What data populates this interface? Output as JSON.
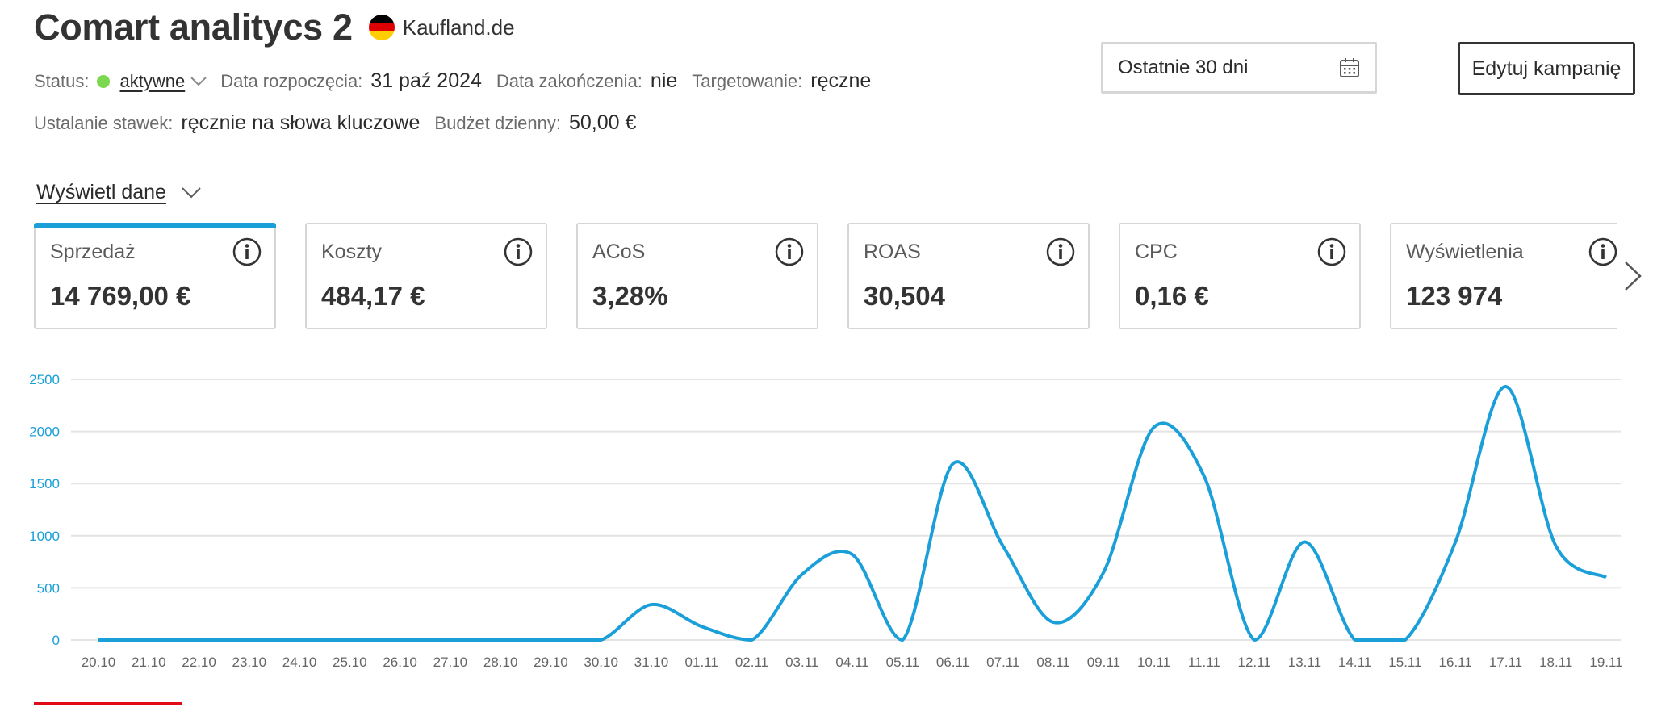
{
  "header": {
    "title": "Comart analitycs 2",
    "marketplace": "Kaufland.de"
  },
  "meta": {
    "status_label": "Status:",
    "status_value": "aktywne",
    "start_label": "Data rozpoczęcia:",
    "start_value": "31 paź 2024",
    "end_label": "Data zakończenia:",
    "end_value": "nie",
    "targeting_label": "Targetowanie:",
    "targeting_value": "ręczne",
    "bidding_label": "Ustalanie stawek:",
    "bidding_value": "ręcznie na słowa kluczowe",
    "budget_label": "Budżet dzienny:",
    "budget_value": "50,00 €"
  },
  "date_range": "Ostatnie 30 dni",
  "edit_button_label": "Edytuj kampanię",
  "show_data_label": "Wyświetl dane",
  "kpis": [
    {
      "name": "Sprzedaż",
      "value": "14 769,00 €",
      "selected": true
    },
    {
      "name": "Koszty",
      "value": "484,17 €",
      "selected": false
    },
    {
      "name": "ACoS",
      "value": "3,28%",
      "selected": false
    },
    {
      "name": "ROAS",
      "value": "30,504",
      "selected": false
    },
    {
      "name": "CPC",
      "value": "0,16 €",
      "selected": false
    },
    {
      "name": "Wyświetlenia",
      "value": "123 974",
      "selected": false
    }
  ],
  "colors": {
    "accent": "#1a9fd8",
    "status_active": "#7bd84f",
    "indicator": "#e10915"
  },
  "icons": {
    "calendar": "calendar-icon",
    "info": "info-icon",
    "chevron_down": "chevron-down-icon",
    "chevron_right": "chevron-right-icon"
  },
  "chart_data": {
    "type": "line",
    "series_metric": "Sprzedaż",
    "ylim": [
      0,
      2500
    ],
    "yticks": [
      0,
      500,
      1000,
      1500,
      2000,
      2500
    ],
    "grid": true,
    "x": [
      "20.10",
      "21.10",
      "22.10",
      "23.10",
      "24.10",
      "25.10",
      "26.10",
      "27.10",
      "28.10",
      "29.10",
      "30.10",
      "31.10",
      "01.11",
      "02.11",
      "03.11",
      "04.11",
      "05.11",
      "06.11",
      "07.11",
      "08.11",
      "09.11",
      "10.11",
      "11.11",
      "12.11",
      "13.11",
      "14.11",
      "15.11",
      "16.11",
      "17.11",
      "18.11",
      "19.11"
    ],
    "values": [
      0,
      0,
      0,
      0,
      0,
      0,
      0,
      0,
      0,
      0,
      0,
      340,
      130,
      0,
      630,
      820,
      0,
      1690,
      900,
      170,
      650,
      2040,
      1570,
      0,
      940,
      0,
      0,
      940,
      2430,
      900,
      600
    ]
  }
}
